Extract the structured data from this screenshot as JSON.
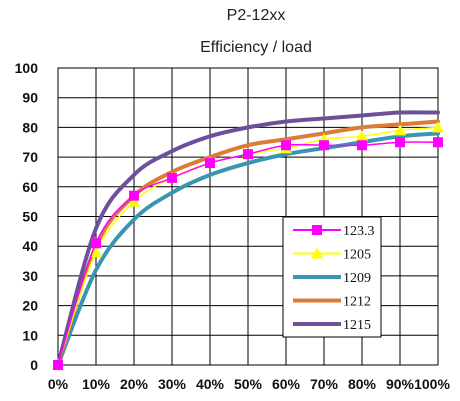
{
  "chart_data": {
    "type": "line",
    "title": "P2-12xx",
    "subtitle": "Efficiency / load",
    "xlabel": "",
    "ylabel": "",
    "x_categories": [
      "0%",
      "10%",
      "20%",
      "30%",
      "40%",
      "50%",
      "60%",
      "70%",
      "80%",
      "90%",
      "100%"
    ],
    "x": [
      0,
      10,
      20,
      30,
      40,
      50,
      60,
      70,
      80,
      90,
      100
    ],
    "xlim": [
      0,
      100
    ],
    "ylim": [
      0,
      100
    ],
    "yticks": [
      0,
      10,
      20,
      30,
      40,
      50,
      60,
      70,
      80,
      90,
      100
    ],
    "grid": true,
    "legend_position": "bottom-right inside plot",
    "series": [
      {
        "name": "123.3",
        "color": "#ff00ff",
        "marker": "square",
        "values": [
          0,
          41,
          57,
          63,
          68,
          71,
          74,
          74,
          74,
          75,
          75
        ]
      },
      {
        "name": "1205",
        "color": "#ffff00",
        "marker": "triangle",
        "values": [
          0,
          38,
          55,
          63,
          68,
          71,
          73,
          76,
          77,
          79,
          80
        ]
      },
      {
        "name": "1209",
        "color": "#3a95b0",
        "marker": "none",
        "values": [
          0,
          32,
          49,
          58,
          64,
          68,
          71,
          73,
          75,
          77,
          78
        ]
      },
      {
        "name": "1212",
        "color": "#dc7c35",
        "marker": "none",
        "values": [
          0,
          40,
          57,
          65,
          70,
          74,
          76,
          78,
          80,
          81,
          82
        ]
      },
      {
        "name": "1215",
        "color": "#6e4f99",
        "marker": "none",
        "values": [
          0,
          46,
          64,
          72,
          77,
          80,
          82,
          83,
          84,
          85,
          85
        ]
      }
    ]
  }
}
